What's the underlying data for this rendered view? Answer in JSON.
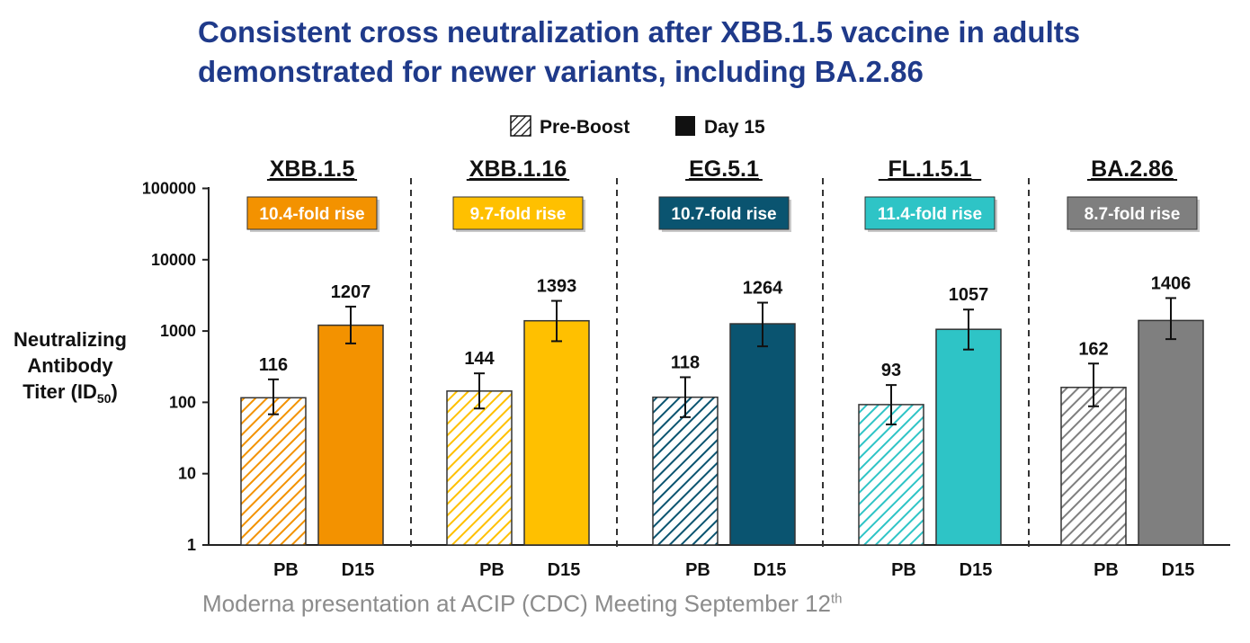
{
  "title": {
    "line1": "Consistent cross neutralization after XBB.1.5 vaccine in adults",
    "line2": "demonstrated for newer variants, including BA.2.86"
  },
  "source": {
    "text": "Moderna presentation at ACIP (CDC) Meeting September 12",
    "sup": "th"
  },
  "chart_data": {
    "type": "bar",
    "scale": "log",
    "ylim": [
      1,
      100000
    ],
    "yticks": [
      "1",
      "10",
      "100",
      "1000",
      "10000",
      "100000"
    ],
    "ylabel": {
      "line1": "Neutralizing",
      "line2": "Antibody",
      "line3": "Titer (ID",
      "sub": "50",
      "close": ")"
    },
    "legend": {
      "position": "top-center",
      "items": [
        {
          "label": "Pre-Boost",
          "style": "hatched"
        },
        {
          "label": "Day 15",
          "style": "solid"
        }
      ]
    },
    "x_labels": {
      "pb": "PB",
      "d15": "D15"
    },
    "groups": [
      {
        "variant": "XBB.1.5",
        "fold": "10.4-fold rise",
        "color": "#f39200",
        "fold_text": "#ffffff",
        "pb": {
          "value": 116,
          "label": "116",
          "err": [
            68,
            210
          ]
        },
        "d15": {
          "value": 1207,
          "label": "1207",
          "err": [
            670,
            2200
          ]
        }
      },
      {
        "variant": "XBB.1.16",
        "fold": "9.7-fold rise",
        "color": "#ffc000",
        "fold_text": "#ffffff",
        "pb": {
          "value": 144,
          "label": "144",
          "err": [
            82,
            255
          ]
        },
        "d15": {
          "value": 1393,
          "label": "1393",
          "err": [
            720,
            2650
          ]
        }
      },
      {
        "variant": "EG.5.1",
        "fold": "10.7-fold rise",
        "color": "#0a5470",
        "fold_text": "#ffffff",
        "pb": {
          "value": 118,
          "label": "118",
          "err": [
            62,
            225
          ]
        },
        "d15": {
          "value": 1264,
          "label": "1264",
          "err": [
            610,
            2500
          ]
        }
      },
      {
        "variant": "FL.1.5.1",
        "fold": "11.4-fold rise",
        "color": "#2ec4c6",
        "fold_text": "#ffffff",
        "pb": {
          "value": 93,
          "label": "93",
          "err": [
            49,
            175
          ]
        },
        "d15": {
          "value": 1057,
          "label": "1057",
          "err": [
            550,
            2000
          ]
        }
      },
      {
        "variant": "BA.2.86",
        "fold": "8.7-fold rise",
        "color": "#7f7f7f",
        "fold_text": "#ffffff",
        "pb": {
          "value": 162,
          "label": "162",
          "err": [
            88,
            350
          ]
        },
        "d15": {
          "value": 1406,
          "label": "1406",
          "err": [
            770,
            2900
          ]
        }
      }
    ]
  }
}
